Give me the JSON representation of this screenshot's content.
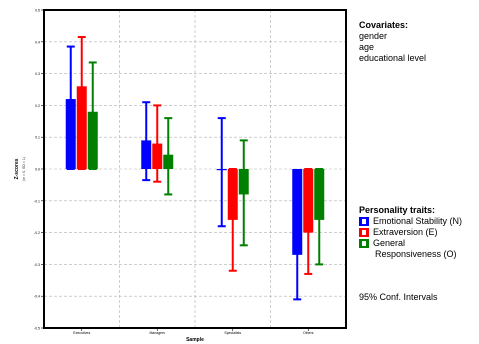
{
  "chart_data": {
    "type": "bar",
    "title": "",
    "xlabel": "Sample",
    "ylabel": "Z-scores",
    "ylabel_sub": "(m = 0, SD = 1)",
    "ylim": [
      -0.5,
      0.5
    ],
    "yticks": [
      -0.5,
      -0.4,
      -0.3,
      -0.2,
      -0.1,
      0.0,
      0.1,
      0.2,
      0.3,
      0.4,
      0.5
    ],
    "ytick_labels": [
      "-0.5",
      "-0.4",
      "-0.3",
      "-0.2",
      "-0.1",
      "0.0",
      "0.1",
      "0.2",
      "0.3",
      "0.4",
      "0.5"
    ],
    "categories": [
      "Executives",
      "Managers",
      "Specialists",
      "Others"
    ],
    "grid": true,
    "series": [
      {
        "name": "Emotional Stability (N)",
        "color": "#0000ff",
        "values": [
          0.22,
          0.09,
          0.0,
          -0.27
        ],
        "ci_low": [
          0.0,
          -0.035,
          -0.18,
          -0.41
        ],
        "ci_high": [
          0.385,
          0.21,
          0.16,
          -0.01
        ]
      },
      {
        "name": "Extraversion (E)",
        "color": "#ff0000",
        "values": [
          0.26,
          0.08,
          -0.16,
          -0.2
        ],
        "ci_low": [
          0.0,
          -0.04,
          -0.32,
          -0.33
        ],
        "ci_high": [
          0.415,
          0.2,
          0.0,
          0.0
        ]
      },
      {
        "name": "General Responsiveness (O)",
        "color": "#008000",
        "values": [
          0.18,
          0.045,
          -0.08,
          -0.16
        ],
        "ci_low": [
          0.0,
          -0.08,
          -0.24,
          -0.3
        ],
        "ci_high": [
          0.335,
          0.16,
          0.09,
          0.0
        ]
      }
    ]
  },
  "covariates": {
    "title": "Covariates:",
    "items": [
      "gender",
      "age",
      "educational level"
    ]
  },
  "legend": {
    "title": "Personality traits:",
    "items": [
      {
        "label": "Emotional Stability (N)",
        "color": "#0000ff"
      },
      {
        "label": "Extraversion (E)",
        "color": "#ff0000"
      },
      {
        "label_line1": "General",
        "label_line2": "Responsiveness (O)",
        "color": "#008000"
      }
    ]
  },
  "ci_note": "95% Conf. Intervals"
}
